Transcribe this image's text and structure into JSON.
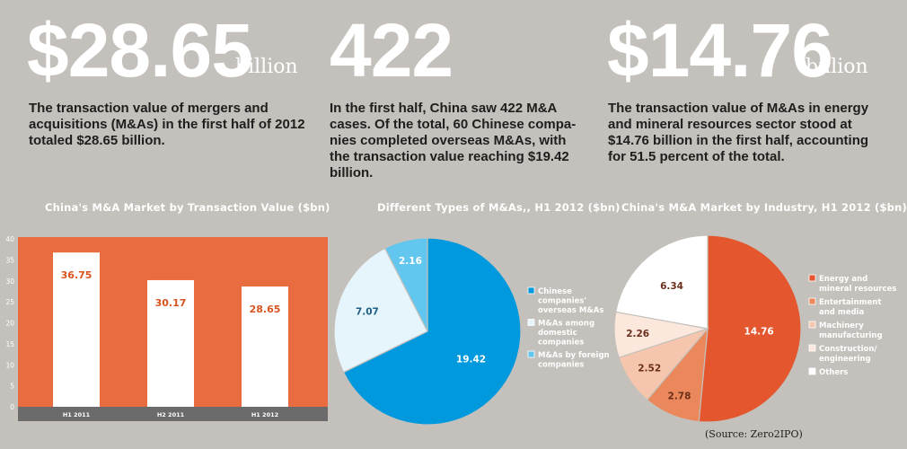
{
  "stats": [
    {
      "value": "$28.65",
      "unit": "billion",
      "text": "The transaction value of mergers and acquisitions (M&As) in the first half of 2012 totaled $28.65 billion."
    },
    {
      "value": "422",
      "unit": "",
      "text": "In the first half, China saw 422 M&A cases. Of the total, 60 Chinese compa-nies completed overseas M&As, with the transaction value reaching $19.42 billion."
    },
    {
      "value": "$14.76",
      "unit": "billion",
      "text": "The transaction value of M&As in energy and mineral resources sector stood at $14.76 billion in the first half, accounting for 51.5 percent of the total."
    }
  ],
  "source": "(Source: Zero2IPO)",
  "colors": {
    "background": "#c4c0bb",
    "bar_panel": "#e86c3f",
    "bar_fill": "#ffffff",
    "axis_band": "#6b6b6b",
    "bar_label": "#d9531e",
    "pie_blue": "#0099dd",
    "pie_light": "#e6f4fb",
    "pie_sky": "#62c6ef",
    "ind_red": "#e4562d",
    "ind_orange": "#ea875b",
    "ind_peach": "#f5c6ad",
    "ind_pale": "#fbe7dc",
    "ind_white": "#ffffff"
  },
  "chart_data": [
    {
      "type": "bar",
      "title": "China's M&A Market by Transaction Value ($bn)",
      "categories": [
        "H1 2011",
        "H2 2011",
        "H1 2012"
      ],
      "values": [
        36.75,
        30.17,
        28.65
      ],
      "value_labels": [
        "36.75",
        "30.17",
        "28.65"
      ],
      "ylim": [
        0,
        40
      ],
      "yticks": [
        "0",
        "5",
        "10",
        "15",
        "20",
        "25",
        "30",
        "35",
        "40"
      ],
      "xlabel": "",
      "ylabel": ""
    },
    {
      "type": "pie",
      "title": "Different Types of M&As,, H1 2012  ($bn)",
      "labels": [
        "Chinese companies' overseas M&As",
        "M&As among domestic companies",
        "M&As by foreign companies"
      ],
      "legend_lines": [
        [
          "Chinese",
          "companies'",
          "overseas M&As"
        ],
        [
          "M&As among",
          "domestic",
          "companies"
        ],
        [
          "M&As by foreign",
          "companies"
        ]
      ],
      "values": [
        19.42,
        7.07,
        2.16
      ],
      "value_labels": [
        "19.42",
        "7.07",
        "2.16"
      ],
      "legend": "right"
    },
    {
      "type": "pie",
      "title": "China's M&A Market by Industry, H1 2012 ($bn)",
      "labels": [
        "Energy and mineral resources",
        "Entertainment and media",
        "Machinery manufacturing",
        "Construction/ engineering",
        "Others"
      ],
      "legend_lines": [
        [
          "Energy and",
          "mineral resources"
        ],
        [
          "Entertainment",
          "and media"
        ],
        [
          "Machinery",
          "manufacturing"
        ],
        [
          "Construction/",
          "engineering"
        ],
        [
          "Others"
        ]
      ],
      "values": [
        14.76,
        2.78,
        2.52,
        2.26,
        6.34
      ],
      "value_labels": [
        "14.76",
        "2.78",
        "2.52",
        "2.26",
        "6.34"
      ],
      "legend": "right"
    }
  ]
}
